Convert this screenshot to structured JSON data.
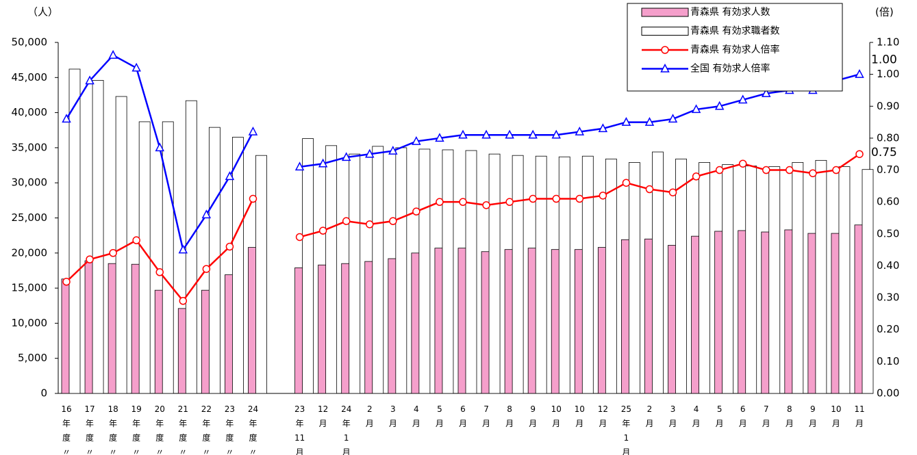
{
  "chart_data": {
    "type": "bar",
    "y_unit_label": "（人）",
    "y2_unit_label": "(倍)",
    "categories": [
      "16\n年\n度\n〃",
      "17\n年\n度\n〃",
      "18\n年\n度\n〃",
      "19\n年\n度\n〃",
      "20\n年\n度\n〃",
      "21\n年\n度\n〃",
      "22\n年\n度\n〃",
      "23\n年\n度\n〃",
      "24\n年\n度\n〃",
      null,
      "23\n年\n11\n月",
      "12\n月",
      "24\n年\n1\n月",
      "2\n月",
      "3\n月",
      "4\n月",
      "5\n月",
      "6\n月",
      "7\n月",
      "8\n月",
      "9\n月",
      "10\n月",
      "10\n月",
      "12\n月",
      "25\n年\n1\n月",
      "2\n月",
      "3\n月",
      "4\n月",
      "5\n月",
      "6\n月",
      "7\n月",
      "8\n月",
      "9\n月",
      "10\n月",
      "11\n月"
    ],
    "series": [
      {
        "name": "青森県 有効求人数",
        "type": "bar",
        "color": "#f59fcb",
        "values": [
          16300,
          18900,
          18500,
          18400,
          14700,
          12100,
          14700,
          16900,
          20800,
          null,
          17900,
          18300,
          18500,
          18800,
          19200,
          20000,
          20700,
          20700,
          20200,
          20500,
          20700,
          20500,
          20500,
          20800,
          21900,
          22000,
          21100,
          22400,
          23100,
          23200,
          23000,
          23300,
          22800,
          22800,
          24000
        ]
      },
      {
        "name": "青森県 有効求職者数",
        "type": "bar",
        "color": "#ffffff",
        "values": [
          46200,
          44600,
          42300,
          38700,
          38700,
          41700,
          37900,
          36500,
          33900,
          null,
          36300,
          35300,
          34100,
          35200,
          35000,
          34800,
          34700,
          34600,
          34100,
          33900,
          33800,
          33700,
          33800,
          33400,
          32900,
          34400,
          33400,
          32900,
          32600,
          32400,
          32300,
          32900,
          33200,
          32300,
          31900
        ]
      },
      {
        "name": "青森県 有効求人倍率",
        "type": "line",
        "marker": "circle",
        "axis": "y2",
        "color": "#ff0000",
        "end_label": "0.75",
        "values": [
          0.35,
          0.42,
          0.44,
          0.48,
          0.38,
          0.29,
          0.39,
          0.46,
          0.61,
          null,
          0.49,
          0.51,
          0.54,
          0.53,
          0.54,
          0.57,
          0.6,
          0.6,
          0.59,
          0.6,
          0.61,
          0.61,
          0.61,
          0.62,
          0.66,
          0.64,
          0.63,
          0.68,
          0.7,
          0.72,
          0.7,
          0.7,
          0.69,
          0.7,
          0.75
        ]
      },
      {
        "name": "全国 有効求人倍率",
        "type": "line",
        "marker": "triangle",
        "axis": "y2",
        "color": "#0000ff",
        "end_label": "1.00",
        "values": [
          0.86,
          0.98,
          1.06,
          1.02,
          0.77,
          0.45,
          0.56,
          0.68,
          0.82,
          null,
          0.71,
          0.72,
          0.74,
          0.75,
          0.76,
          0.79,
          0.8,
          0.81,
          0.81,
          0.81,
          0.81,
          0.81,
          0.82,
          0.83,
          0.85,
          0.85,
          0.86,
          0.89,
          0.9,
          0.92,
          0.94,
          0.95,
          0.95,
          0.98,
          1.0
        ]
      }
    ],
    "ylim": [
      0,
      50000
    ],
    "yticks": [
      0,
      {
        "value": 5000,
        "label": "5,000"
      },
      {
        "value": 10000,
        "label": "10,000"
      },
      {
        "value": 15000,
        "label": "15,000"
      },
      {
        "value": 20000,
        "label": "20,000"
      },
      {
        "value": 25000,
        "label": "25,000"
      },
      {
        "value": 30000,
        "label": "30,000"
      },
      {
        "value": 35000,
        "label": "35,000"
      },
      {
        "value": 40000,
        "label": "40,000"
      },
      {
        "value": 45000,
        "label": "45,000"
      },
      {
        "value": 50000,
        "label": "50,000"
      }
    ],
    "y2lim": [
      0,
      1.1
    ],
    "y2ticks": [
      {
        "value": 0,
        "label": "0.00"
      },
      {
        "value": 0.1,
        "label": "0.10"
      },
      {
        "value": 0.2,
        "label": "0.20"
      },
      {
        "value": 0.3,
        "label": "0.30"
      },
      {
        "value": 0.4,
        "label": "0.40"
      },
      {
        "value": 0.5,
        "label": "0.50"
      },
      {
        "value": 0.6,
        "label": "0.60"
      },
      {
        "value": 0.7,
        "label": "0.70"
      },
      {
        "value": 0.8,
        "label": "0.80"
      },
      {
        "value": 0.9,
        "label": "0.90"
      },
      {
        "value": 1.0,
        "label": "1.00"
      },
      {
        "value": 1.1,
        "label": "1.10"
      }
    ],
    "grid": false,
    "legend": "top-right"
  }
}
